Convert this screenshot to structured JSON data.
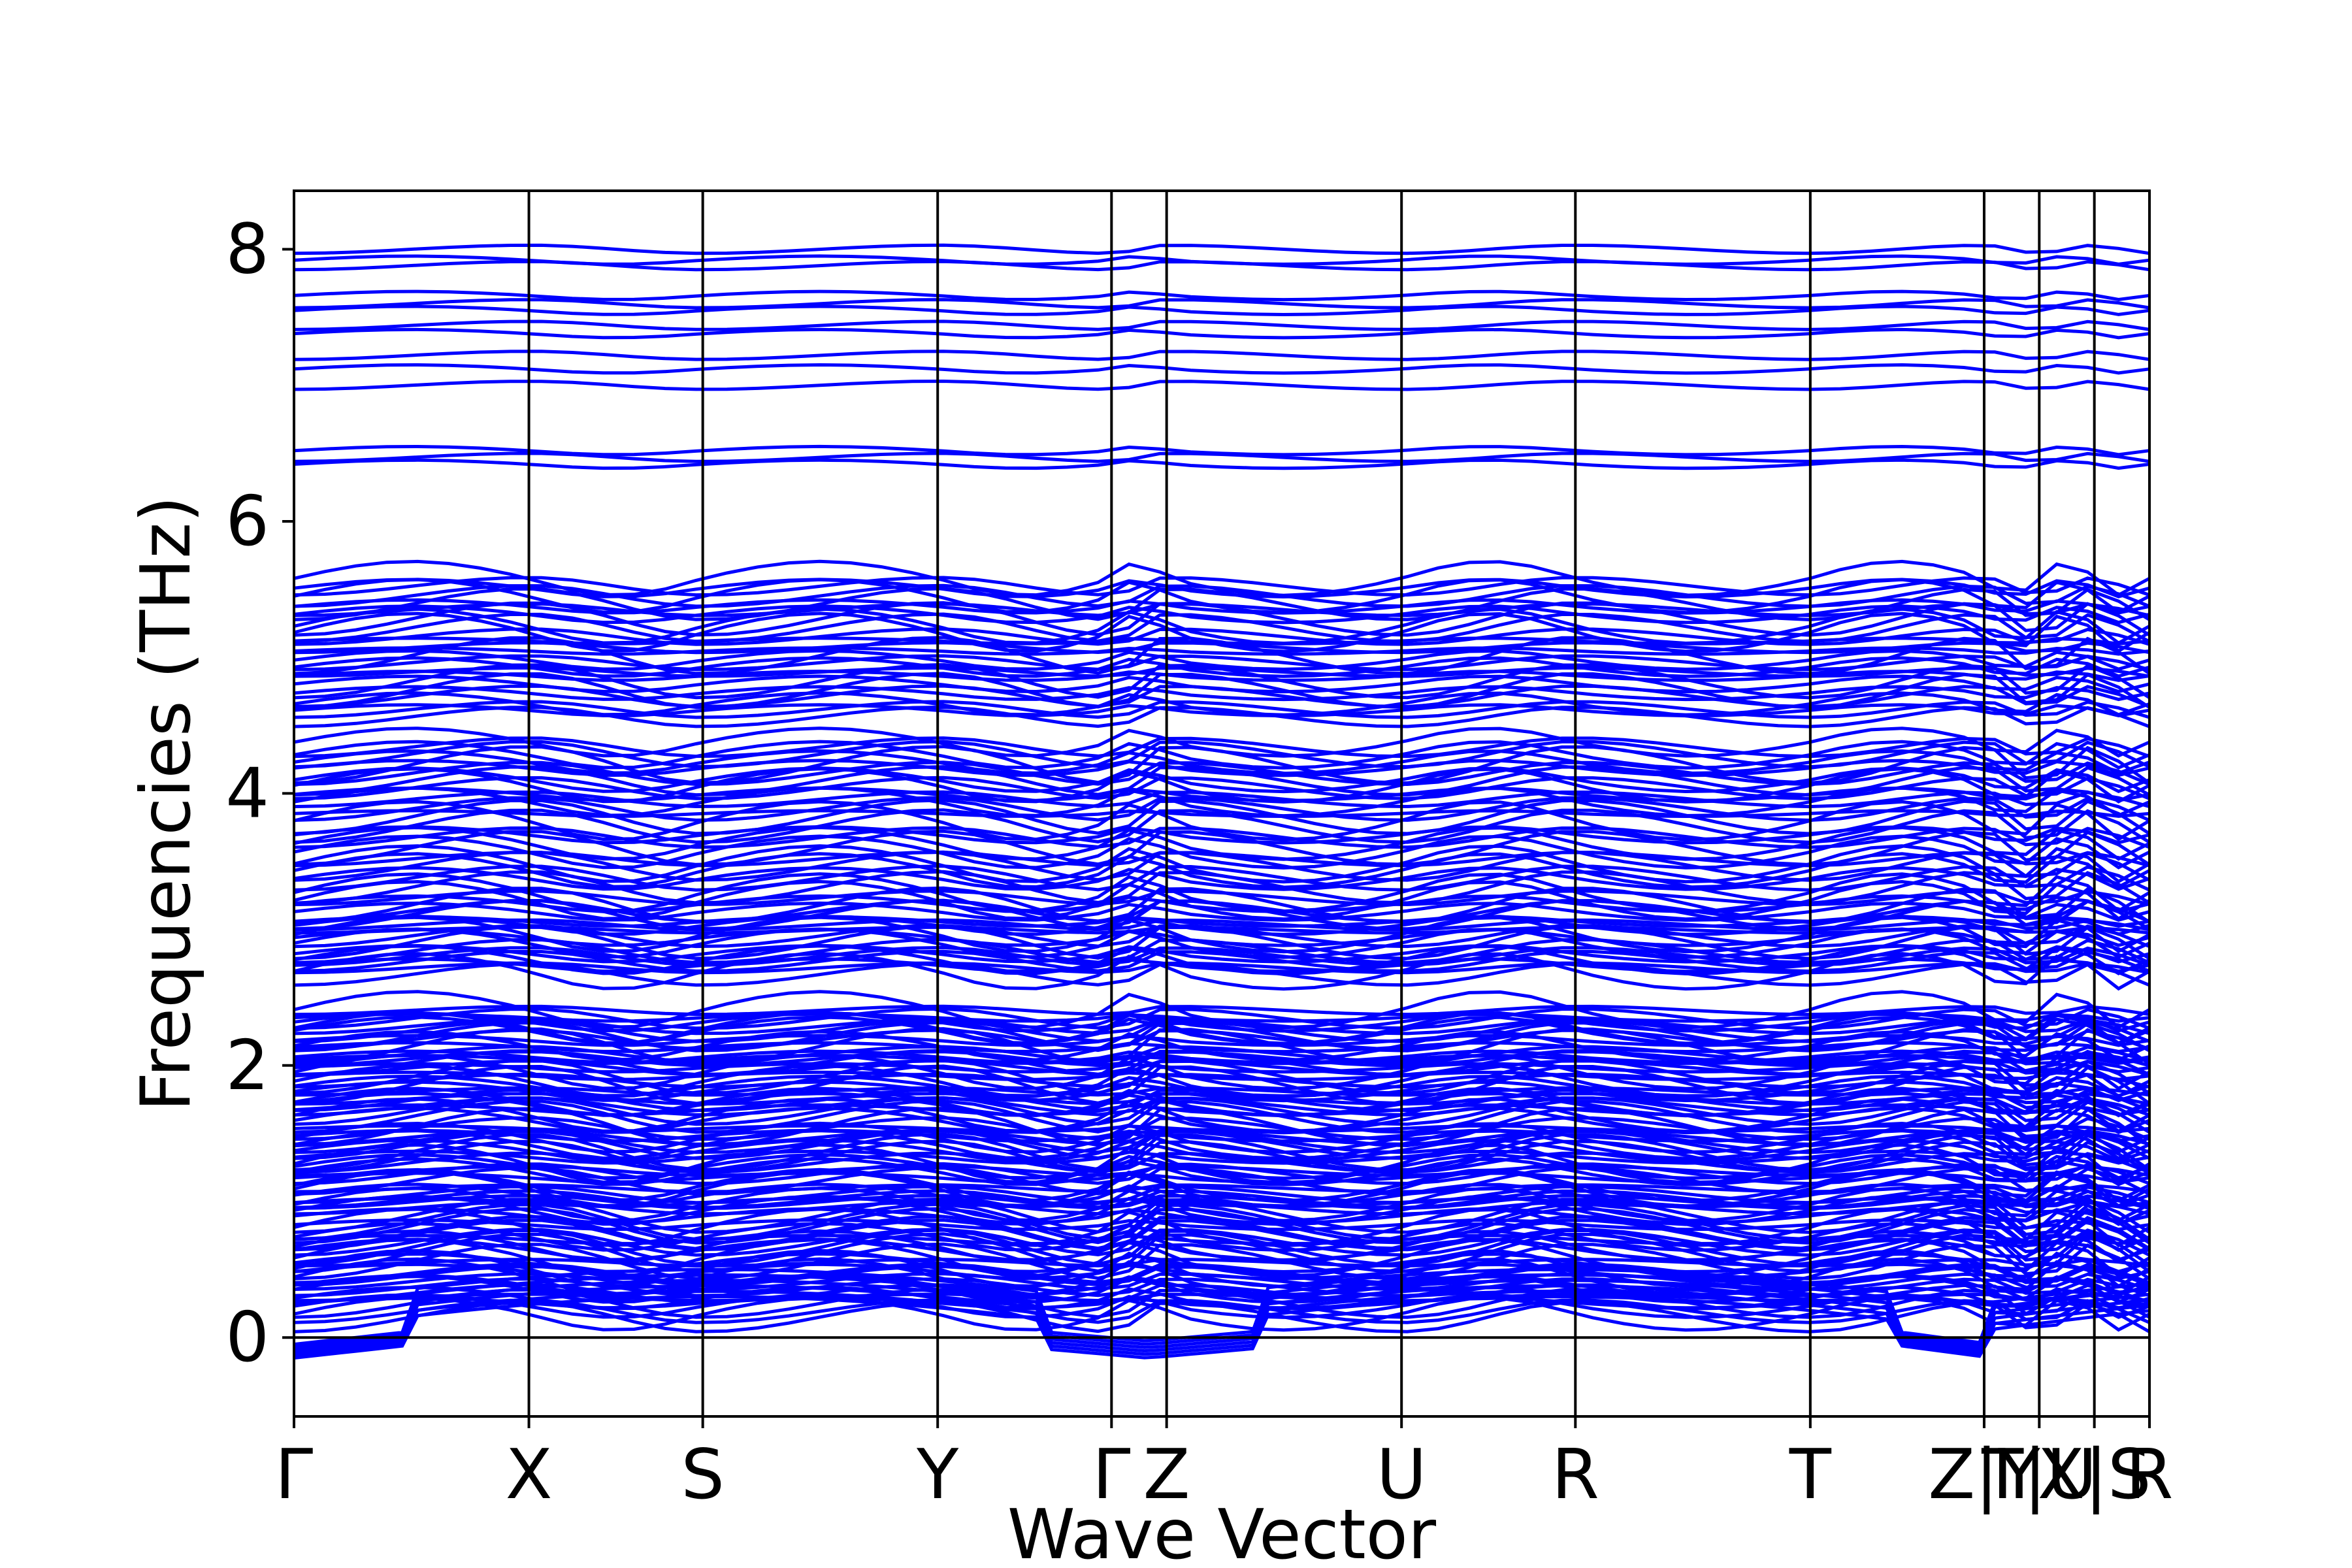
{
  "chart_data": {
    "type": "line",
    "title": "",
    "xlabel": "Wave Vector",
    "ylabel": "Frequencies (THz)",
    "ylim": [
      -0.58,
      8.43
    ],
    "y_ticks": [
      0,
      2,
      4,
      6,
      8
    ],
    "x_ticks": [
      {
        "label": "Γ",
        "x": 0.0
      },
      {
        "label": "X",
        "x": 0.1266
      },
      {
        "label": "S",
        "x": 0.2203
      },
      {
        "label": "Y",
        "x": 0.3469
      },
      {
        "label": "Γ",
        "x": 0.4406
      },
      {
        "label": "Z",
        "x": 0.4703
      },
      {
        "label": "U",
        "x": 0.5969
      },
      {
        "label": "R",
        "x": 0.6906
      },
      {
        "label": "T",
        "x": 0.8172
      },
      {
        "label": "Z|Y",
        "x": 0.9109
      },
      {
        "label": "T|U",
        "x": 0.9406
      },
      {
        "label": "X|S",
        "x": 0.9703
      },
      {
        "label": "R",
        "x": 1.0
      }
    ],
    "segment_boundaries": [
      0.0,
      0.1266,
      0.2203,
      0.3469,
      0.4406,
      0.4703,
      0.5969,
      0.6906,
      0.8172,
      0.9109,
      0.9406,
      0.9703,
      1.0
    ],
    "line_color": "#0000ff",
    "zero_line": true,
    "grid": false,
    "band_summary": {
      "flat_bands_THz": [
        8.0,
        7.92,
        7.88,
        7.66,
        7.6,
        7.55,
        7.44,
        7.38,
        7.22,
        7.12,
        7.0,
        6.52,
        6.47,
        6.42
      ],
      "band_groups_THz": [
        [
          5.13,
          5.58
        ],
        [
          4.55,
          5.13
        ],
        [
          3.95,
          4.38
        ],
        [
          3.3,
          3.95
        ],
        [
          2.65,
          3.28
        ],
        [
          0.15,
          2.42
        ]
      ],
      "soft_mode_min_THz": -0.15
    },
    "axis_ranges_note": "x normalized path distance 0 to 1"
  }
}
